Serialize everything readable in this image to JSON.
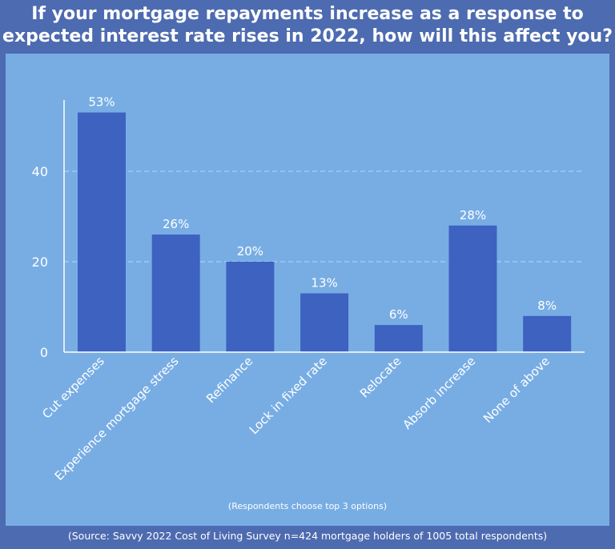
{
  "title": "If your mortgage repayments increase as a response to expected interest rate rises in 2022, how will this affect you?",
  "note": "(Respondents choose top 3 options)",
  "source": "(Source: Savvy 2022 Cost of Living Survey n=424 mortgage holders of 1005 total respondents)",
  "colors": {
    "background": "#4d6bb0",
    "panel": "#78ade4",
    "bar": "#3d62c0",
    "text": "#ffffff"
  },
  "chart_data": {
    "type": "bar",
    "categories": [
      "Cut expenses",
      "Experience mortgage stress",
      "Refinance",
      "Lock in fixed rate",
      "Relocate",
      "Absorb increase",
      "None of above"
    ],
    "values": [
      53,
      26,
      20,
      13,
      6,
      28,
      8
    ],
    "data_labels": [
      "53%",
      "26%",
      "20%",
      "13%",
      "6%",
      "28%",
      "8%"
    ],
    "yticks": [
      0,
      20,
      40
    ],
    "ylim": [
      0,
      56
    ],
    "grid": "horizontal dashed",
    "legend": "none"
  }
}
